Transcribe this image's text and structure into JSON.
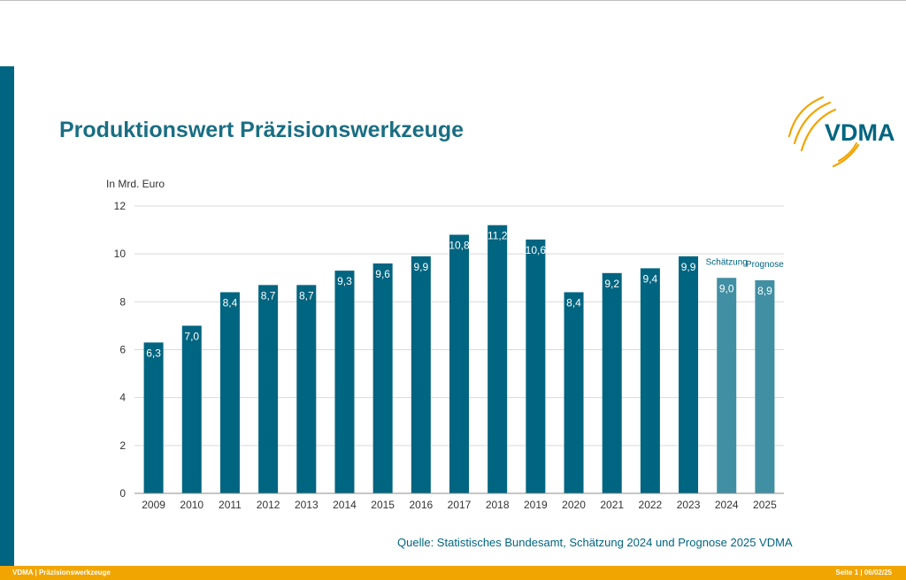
{
  "slide": {
    "title": "Produktionswert Präzisionswerkzeuge",
    "source": "Quelle: Statistisches Bundesamt, Schätzung 2024 und Prognose 2025 VDMA",
    "logo_text": "VDMA"
  },
  "footer": {
    "left": "VDMA | Präzisionswerkzeuge",
    "right": "Seite 1 | 06/02/25"
  },
  "colors": {
    "bar": "#006580",
    "bar_forecast": "#418fa3",
    "accent": "#f0a500",
    "title": "#1a6e83",
    "grid": "#d9d9d9"
  },
  "chart_data": {
    "type": "bar",
    "ylabel": "In Mrd. Euro",
    "ylim": [
      0,
      12
    ],
    "yticks": [
      0,
      2,
      4,
      6,
      8,
      10,
      12
    ],
    "grid": true,
    "categories": [
      "2009",
      "2010",
      "2011",
      "2012",
      "2013",
      "2014",
      "2015",
      "2016",
      "2017",
      "2018",
      "2019",
      "2020",
      "2021",
      "2022",
      "2023",
      "2024",
      "2025"
    ],
    "values": [
      6.3,
      7.0,
      8.4,
      8.7,
      8.7,
      9.3,
      9.6,
      9.9,
      10.8,
      11.2,
      10.6,
      8.4,
      9.2,
      9.4,
      9.9,
      9.0,
      8.9
    ],
    "data_labels": [
      "6,3",
      "7,0",
      "8,4",
      "8,7",
      "8,7",
      "9,3",
      "9,6",
      "9,9",
      "10,8",
      "11,2",
      "10,6",
      "8,4",
      "9,2",
      "9,4",
      "9,9",
      "9,0",
      "8,9"
    ],
    "forecast_flags": [
      false,
      false,
      false,
      false,
      false,
      false,
      false,
      false,
      false,
      false,
      false,
      false,
      false,
      false,
      false,
      true,
      true
    ],
    "annotations": [
      {
        "category": "2024",
        "text": "Schätzung"
      },
      {
        "category": "2025",
        "text": "Prognose"
      }
    ]
  }
}
